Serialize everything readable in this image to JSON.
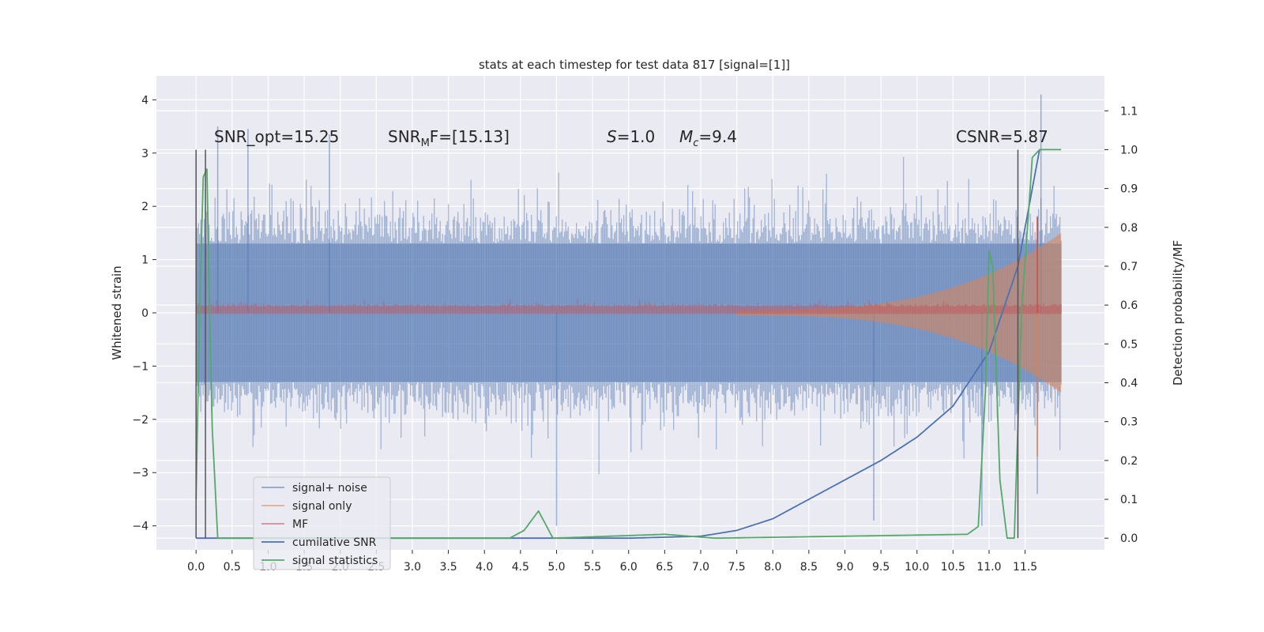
{
  "chart_data": {
    "type": "line",
    "title": "stats at each timestep for test data 817 [signal=[1]]",
    "xlabel": "",
    "ylabel": "Whitened strain",
    "ylabel_right": "Detection probability/MF",
    "xlim": [
      -0.55,
      12.6
    ],
    "ylim": [
      -4.45,
      4.45
    ],
    "ylim_right": [
      -0.03,
      1.19
    ],
    "xticks": [
      "0.0",
      "0.5",
      "1.0",
      "1.5",
      "2.0",
      "2.5",
      "3.0",
      "3.5",
      "4.0",
      "4.5",
      "5.0",
      "5.5",
      "6.0",
      "6.5",
      "7.0",
      "7.5",
      "8.0",
      "8.5",
      "9.0",
      "9.5",
      "10.0",
      "10.5",
      "11.0",
      "11.5"
    ],
    "yticks": [
      "4",
      "3",
      "2",
      "1",
      "0",
      "−1",
      "−2",
      "−3",
      "−4"
    ],
    "yticks_right": [
      "1.1",
      "1.0",
      "0.9",
      "0.8",
      "0.7",
      "0.6",
      "0.5",
      "0.4",
      "0.3",
      "0.2",
      "0.1",
      "0.0"
    ],
    "grid": true,
    "legend_position": "lower-left",
    "annotations": [
      {
        "id": "snr-opt",
        "text": "SNR_opt=15.25"
      },
      {
        "id": "snr-mf",
        "text": "SNR_MF=[15.13]"
      },
      {
        "id": "s-val",
        "text": "S=1.0"
      },
      {
        "id": "mc-val",
        "text": "M_c=9.4"
      },
      {
        "id": "csnr",
        "text": "CSNR=5.87"
      }
    ],
    "vlines": [
      0.0,
      0.13,
      11.4
    ],
    "series": [
      {
        "name": "signal+ noise",
        "color": "#4c72b0",
        "axis": "left",
        "style": "noise",
        "x_range": [
          0.0,
          12.0
        ],
        "typical_range": [
          -2.0,
          2.0
        ],
        "extremes": [
          -4.0,
          4.1
        ]
      },
      {
        "name": "signal only",
        "color": "#dd8452",
        "axis": "left",
        "style": "chirp",
        "x_range": [
          7.5,
          12.0
        ],
        "envelope_start": 0.05,
        "envelope_end": 1.5,
        "peak": [
          11.67,
          1.8
        ]
      },
      {
        "name": "MF",
        "color": "#c44e52",
        "axis": "left",
        "style": "band",
        "x_range": [
          0.0,
          12.0
        ],
        "baseline": 0.12,
        "peak": [
          11.67,
          1.8
        ]
      },
      {
        "name": "cumilative SNR",
        "color": "#4c72b0",
        "axis": "right",
        "x": [
          0.0,
          6.0,
          7.0,
          7.5,
          8.0,
          8.5,
          9.0,
          9.5,
          10.0,
          10.5,
          11.0,
          11.4,
          11.7
        ],
        "y": [
          0.0,
          0.0,
          0.005,
          0.02,
          0.05,
          0.1,
          0.15,
          0.2,
          0.26,
          0.34,
          0.48,
          0.7,
          1.0
        ]
      },
      {
        "name": "signal statistics",
        "color": "#55a868",
        "axis": "right",
        "x": [
          0.0,
          0.05,
          0.1,
          0.15,
          0.22,
          0.3,
          4.35,
          4.55,
          4.75,
          4.95,
          6.5,
          7.2,
          10.7,
          10.85,
          10.95,
          11.0,
          11.05,
          11.15,
          11.25,
          11.35,
          11.45,
          11.6,
          11.7,
          12.0
        ],
        "y": [
          0.1,
          0.6,
          0.93,
          0.95,
          0.3,
          0.0,
          0.0,
          0.02,
          0.07,
          0.0,
          0.01,
          0.0,
          0.01,
          0.03,
          0.38,
          0.74,
          0.7,
          0.15,
          0.0,
          0.0,
          0.58,
          0.98,
          1.0,
          1.0
        ]
      }
    ]
  }
}
